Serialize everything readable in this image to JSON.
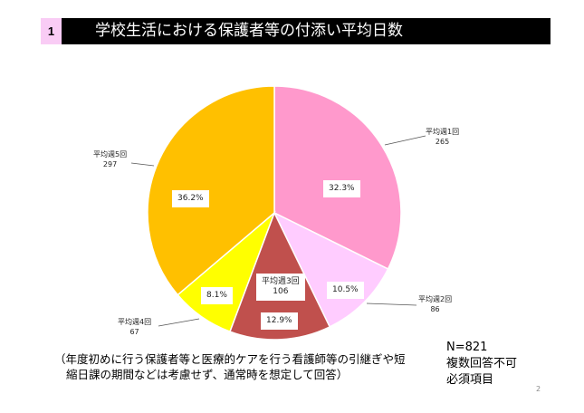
{
  "header": {
    "number": "1",
    "title": "学校生活における保護者等の付添い平均日数"
  },
  "chart_data": {
    "type": "pie",
    "title": "学校生活における保護者等の付添い平均日数",
    "slices": [
      {
        "label": "平均週1回",
        "count": "265",
        "percent": "32.3%",
        "value": 32.3,
        "color": "#FF99CC"
      },
      {
        "label": "平均週2回",
        "count": "86",
        "percent": "10.5%",
        "value": 10.5,
        "color": "#FFCCFF"
      },
      {
        "label": "平均週3回",
        "count": "106",
        "percent": "12.9%",
        "value": 12.9,
        "color": "#C0504D"
      },
      {
        "label": "平均週4回",
        "count": "67",
        "percent": "8.1%",
        "value": 8.1,
        "color": "#FFFF00"
      },
      {
        "label": "平均週5回",
        "count": "297",
        "percent": "36.2%",
        "value": 36.2,
        "color": "#FFC000"
      }
    ]
  },
  "note": {
    "line1": "（年度初めに行う保護者等と医療的ケアを行う看護師等の引継ぎや短",
    "line2": "縮日課の期間などは考慮せず、通常時を想定して回答）"
  },
  "summary": {
    "n": "N=821",
    "line2": "複数回答不可",
    "line3": "必須項目"
  },
  "page_number": "2"
}
